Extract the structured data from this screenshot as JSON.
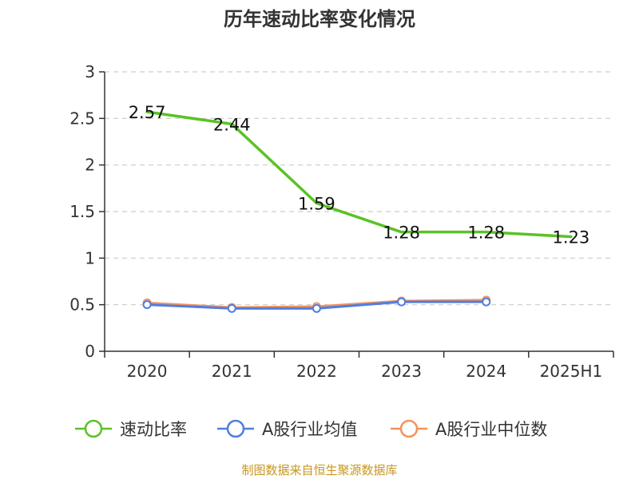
{
  "chart_data": {
    "type": "line",
    "title": "历年速动比率变化情况",
    "categories": [
      "2020",
      "2021",
      "2022",
      "2023",
      "2024",
      "2025H1"
    ],
    "ylim": [
      0,
      3
    ],
    "yticks": [
      "0",
      "0.5",
      "1",
      "1.5",
      "2",
      "2.5",
      "3"
    ],
    "grid": true,
    "legend_position": "bottom",
    "series": [
      {
        "name": "速动比率",
        "color": "#5bc226",
        "values": [
          2.57,
          2.44,
          1.59,
          1.28,
          1.28,
          1.23
        ],
        "labels": [
          "2.57",
          "2.44",
          "1.59",
          "1.28",
          "1.28",
          "1.23"
        ]
      },
      {
        "name": "A股行业均值",
        "color": "#4f7ee0",
        "values": [
          0.5,
          0.46,
          0.46,
          0.53,
          0.53,
          null
        ]
      },
      {
        "name": "A股行业中位数",
        "color": "#f2935c",
        "values": [
          0.52,
          0.47,
          0.48,
          0.54,
          0.55,
          null
        ]
      }
    ]
  },
  "source": "制图数据来自恒生聚源数据库"
}
